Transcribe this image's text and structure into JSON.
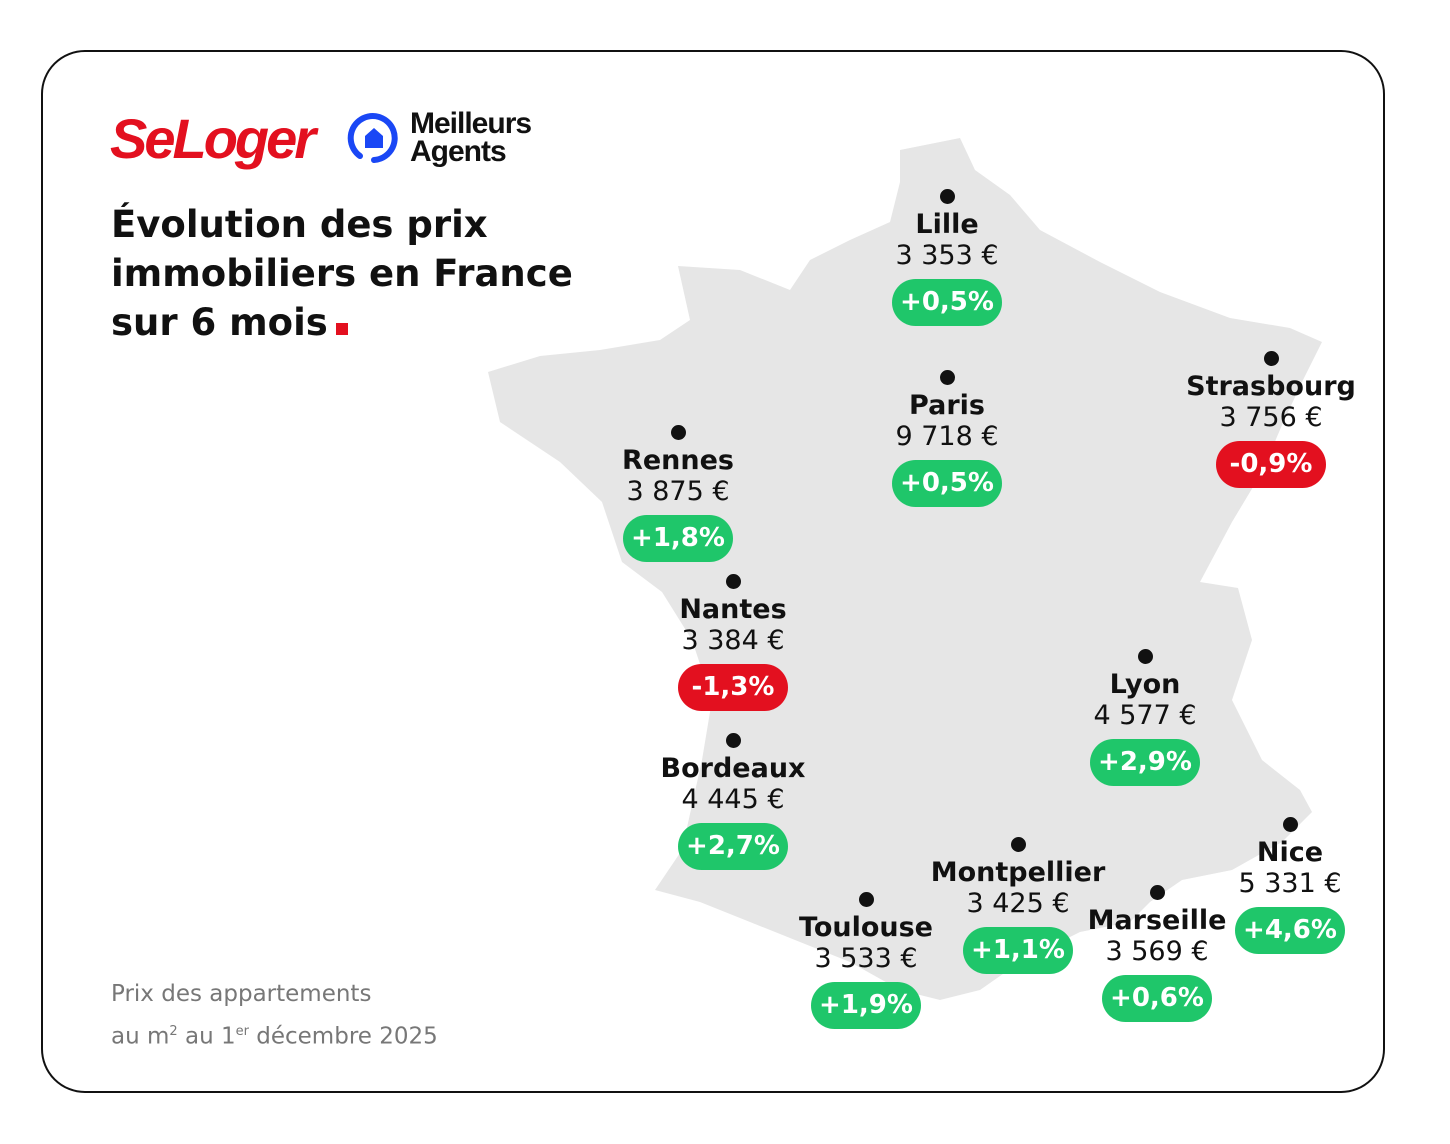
{
  "brand": {
    "seloger": "SeLoger",
    "meilleurs_agents": [
      "Meilleurs",
      "Agents"
    ]
  },
  "title": [
    "Évolution des prix",
    "immobiliers en France",
    "sur 6 mois"
  ],
  "note": {
    "line1": "Prix des appartements",
    "line2_a": "au m",
    "sup1": "2",
    "line2_b": " au 1",
    "sup2": "er",
    "line2_c": " décembre 2025"
  },
  "colors": {
    "positive": "#1fc66a",
    "negative": "#e3101f",
    "map": "#e6e6e6",
    "brand_red": "#e3101f",
    "brand_blue": "#1a47f5"
  },
  "cities": [
    {
      "name": "Lille",
      "price": "3 353 €",
      "change": "+0,5%",
      "trend": "up"
    },
    {
      "name": "Paris",
      "price": "9 718 €",
      "change": "+0,5%",
      "trend": "up"
    },
    {
      "name": "Strasbourg",
      "price": "3 756 €",
      "change": "-0,9%",
      "trend": "down"
    },
    {
      "name": "Rennes",
      "price": "3 875 €",
      "change": "+1,8%",
      "trend": "up"
    },
    {
      "name": "Nantes",
      "price": "3 384 €",
      "change": "-1,3%",
      "trend": "down"
    },
    {
      "name": "Bordeaux",
      "price": "4 445 €",
      "change": "+2,7%",
      "trend": "up"
    },
    {
      "name": "Lyon",
      "price": "4 577 €",
      "change": "+2,9%",
      "trend": "up"
    },
    {
      "name": "Nice",
      "price": "5 331 €",
      "change": "+4,6%",
      "trend": "up"
    },
    {
      "name": "Montpellier",
      "price": "3 425 €",
      "change": "+1,1%",
      "trend": "up"
    },
    {
      "name": "Marseille",
      "price": "3 569 €",
      "change": "+0,6%",
      "trend": "up"
    },
    {
      "name": "Toulouse",
      "price": "3 533 €",
      "change": "+1,9%",
      "trend": "up"
    }
  ]
}
